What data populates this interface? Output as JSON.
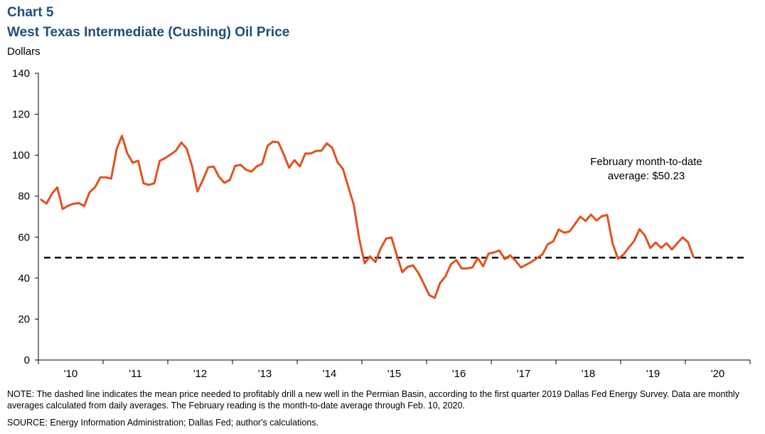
{
  "header": {
    "chart_number": "Chart 5",
    "title": "West Texas Intermediate (Cushing) Oil Price"
  },
  "footer": {
    "note": "NOTE: The dashed line indicates the mean price needed to profitably drill a new well in the Permian Basin, according to the first quarter 2019 Dallas Fed Energy Survey. Data are monthly averages calculated from daily averages. The February reading is the month-to-date average through Feb. 10, 2020.",
    "source": "SOURCE: Energy Information Administration; Dallas Fed; author's calculations."
  },
  "colors": {
    "series": "#e0531f",
    "reference": "#000000",
    "title": "#1f4e79"
  },
  "chart_data": {
    "type": "line",
    "title": "West Texas Intermediate (Cushing) Oil Price",
    "ylabel": "Dollars",
    "ylim": [
      0,
      140
    ],
    "yticks": [
      0,
      20,
      40,
      60,
      80,
      100,
      120,
      140
    ],
    "x_start": "2010-01",
    "xticks": [
      "'10",
      "'11",
      "'12",
      "'13",
      "'14",
      "'15",
      "'16",
      "'17",
      "'18",
      "'19",
      "'20"
    ],
    "grid": false,
    "reference_line": {
      "value": 50,
      "style": "dashed"
    },
    "annotation": {
      "line1": "February month-to-date",
      "line2": "average:  $50.23"
    },
    "series": [
      {
        "values": [
          78.3,
          76.4,
          81.2,
          84.3,
          73.7,
          75.3,
          76.3,
          76.6,
          75.2,
          81.9,
          84.3,
          89.2,
          89.2,
          88.6,
          102.9,
          109.5,
          100.9,
          96.3,
          97.3,
          86.3,
          85.5,
          86.3,
          97.2,
          98.6,
          100.3,
          102.2,
          106.2,
          103.3,
          94.7,
          82.3,
          87.9,
          94.1,
          94.5,
          89.5,
          86.5,
          87.9,
          94.8,
          95.3,
          92.9,
          92.0,
          94.5,
          95.8,
          104.6,
          106.6,
          106.3,
          100.5,
          93.9,
          97.6,
          94.6,
          100.8,
          100.8,
          102.1,
          102.2,
          105.8,
          103.6,
          96.5,
          93.2,
          84.4,
          75.8,
          59.3,
          47.2,
          50.6,
          47.8,
          54.5,
          59.3,
          59.8,
          50.9,
          42.9,
          45.5,
          46.2,
          42.4,
          37.2,
          31.7,
          30.3,
          37.6,
          40.8,
          46.7,
          48.8,
          44.7,
          44.7,
          45.2,
          49.8,
          45.7,
          52.0,
          52.5,
          53.5,
          49.3,
          51.1,
          48.5,
          45.2,
          46.6,
          48.0,
          49.8,
          51.6,
          56.6,
          57.9,
          63.7,
          62.2,
          62.7,
          66.3,
          70.0,
          67.9,
          71.0,
          68.1,
          70.2,
          70.8,
          57.0,
          49.5,
          51.4,
          54.9,
          58.2,
          63.9,
          60.8,
          54.7,
          57.4,
          54.8,
          57.0,
          54.0,
          57.0,
          59.9,
          57.5,
          50.23
        ]
      }
    ]
  }
}
